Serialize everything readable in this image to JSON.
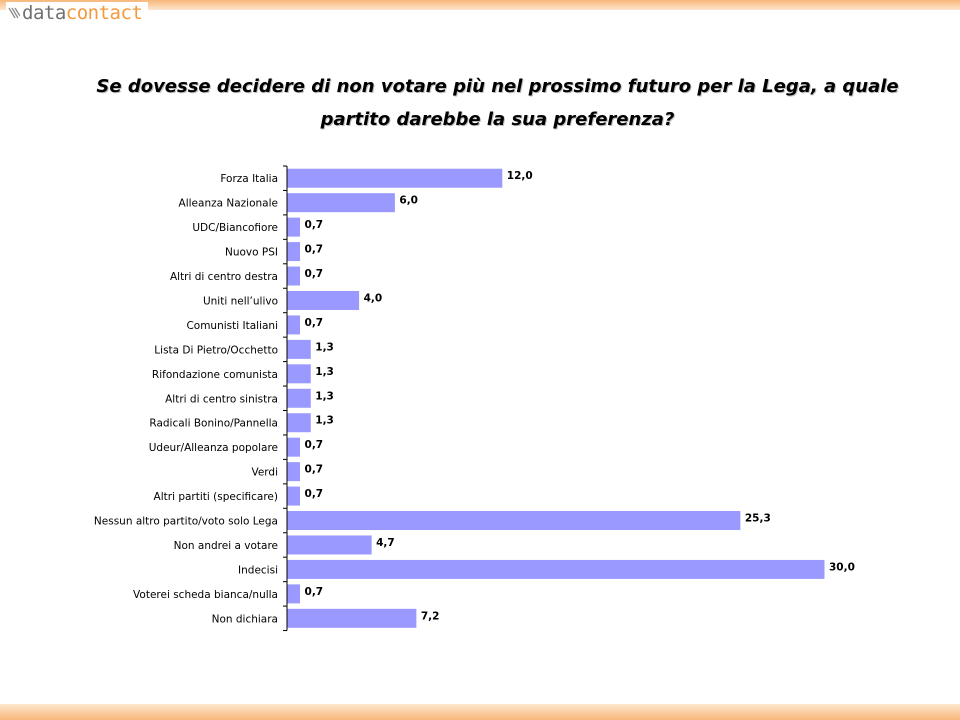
{
  "header": {
    "logo_part1": "data",
    "logo_part2": "contact"
  },
  "colors": {
    "bar": "#9999ff",
    "logo_accent": "#f39a3e",
    "band": "#f7b77a"
  },
  "chart_data": {
    "type": "bar",
    "orientation": "horizontal",
    "title": "Se dovesse decidere di non votare più nel prossimo futuro per la Lega, a quale partito darebbe la sua preferenza?",
    "xlabel": "",
    "ylabel": "",
    "grid": false,
    "legend": "none",
    "xlim": [
      0,
      30
    ],
    "categories": [
      "Forza Italia",
      "Alleanza Nazionale",
      "UDC/Biancofiore",
      "Nuovo PSI",
      "Altri di centro destra",
      "Uniti nell’ulivo",
      "Comunisti Italiani",
      "Lista Di Pietro/Occhetto",
      "Rifondazione comunista",
      "Altri di centro sinistra",
      "Radicali Bonino/Pannella",
      "Udeur/Alleanza popolare",
      "Verdi",
      "Altri partiti (specificare)",
      "Nessun altro partito/voto solo Lega",
      "Non andrei a votare",
      "Indecisi",
      "Voterei scheda bianca/nulla",
      "Non dichiara"
    ],
    "values": [
      12.0,
      6.0,
      0.7,
      0.7,
      0.7,
      4.0,
      0.7,
      1.3,
      1.3,
      1.3,
      1.3,
      0.7,
      0.7,
      0.7,
      25.3,
      4.7,
      30.0,
      0.7,
      7.2
    ],
    "value_labels": [
      "12,0",
      "6,0",
      "0,7",
      "0,7",
      "0,7",
      "4,0",
      "0,7",
      "1,3",
      "1,3",
      "1,3",
      "1,3",
      "0,7",
      "0,7",
      "0,7",
      "25,3",
      "4,7",
      "30,0",
      "0,7",
      "7,2"
    ]
  }
}
